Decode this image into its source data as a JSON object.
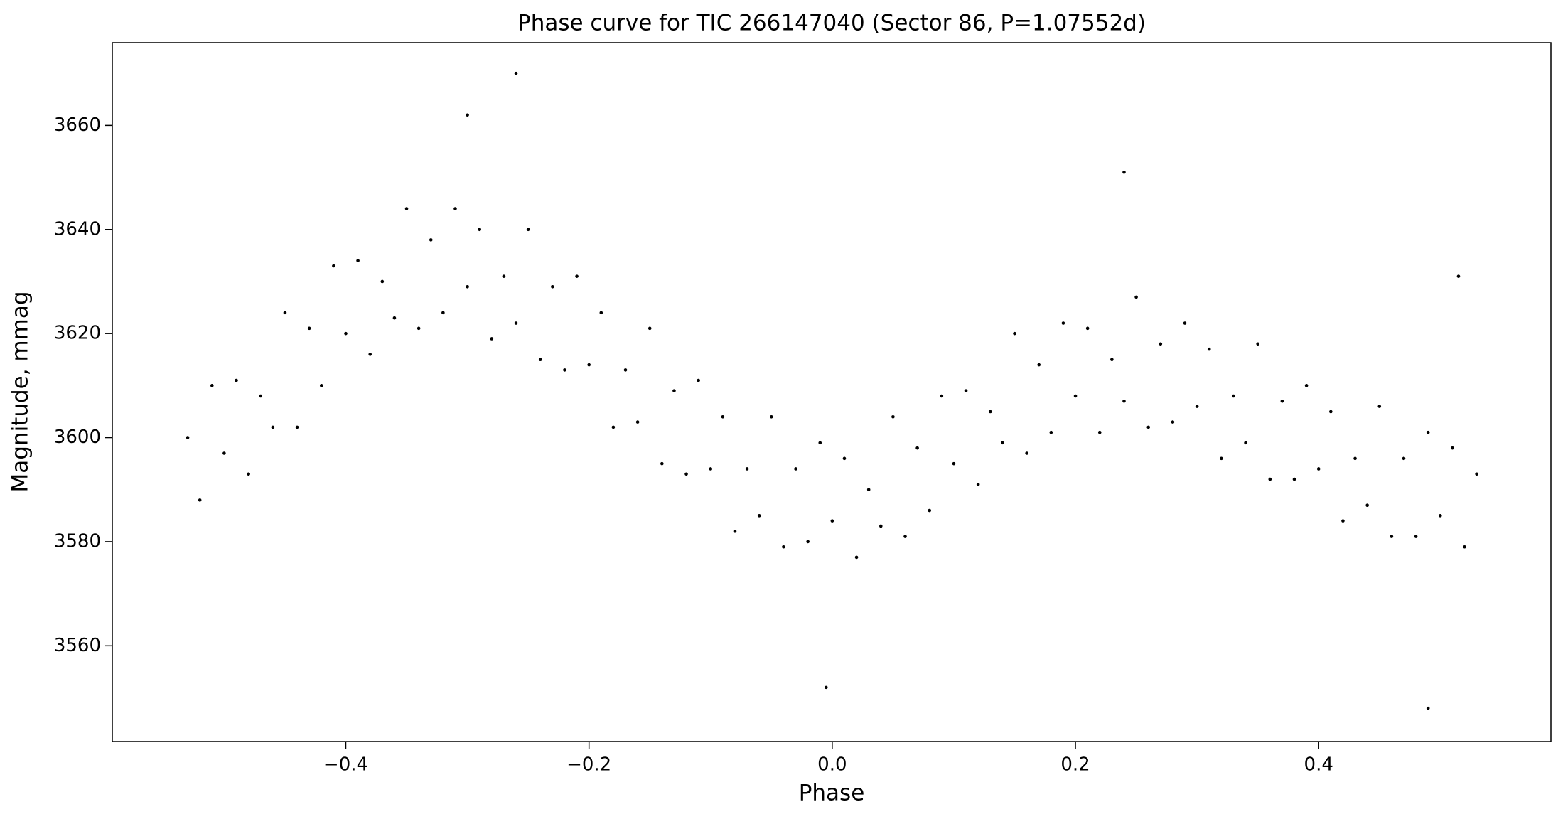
{
  "chart_data": {
    "type": "scatter",
    "title": "Phase curve for TIC 266147040 (Sector 86, P=1.07552d)",
    "x_label": "Phase",
    "y_label": "Magnitude, mmag",
    "color": "#000000",
    "xlim": [
      -0.592,
      0.591
    ],
    "ylim": [
      3541.6,
      3675.9
    ],
    "xticks": [
      {
        "value": -0.4,
        "label": "−0.4"
      },
      {
        "value": -0.2,
        "label": "−0.2"
      },
      {
        "value": 0,
        "label": "0.0"
      },
      0.2,
      0.4
    ],
    "yticks": [
      3560,
      3580,
      3600,
      3620,
      3640,
      3660
    ],
    "x": [
      -0.53,
      -0.52,
      -0.51,
      -0.5,
      -0.49,
      -0.48,
      -0.47,
      -0.46,
      -0.45,
      -0.44,
      -0.43,
      -0.42,
      -0.41,
      -0.4,
      -0.39,
      -0.38,
      -0.37,
      -0.36,
      -0.35,
      -0.34,
      -0.33,
      -0.32,
      -0.31,
      -0.3,
      -0.29,
      -0.28,
      -0.27,
      -0.26,
      -0.25,
      -0.24,
      -0.23,
      -0.22,
      -0.21,
      -0.2,
      -0.19,
      -0.18,
      -0.17,
      -0.16,
      -0.15,
      -0.14,
      -0.13,
      -0.12,
      -0.11,
      -0.1,
      -0.09,
      -0.08,
      -0.07,
      -0.06,
      -0.05,
      -0.04,
      -0.03,
      -0.02,
      -0.01,
      0,
      0.01,
      0.02,
      0.03,
      0.04,
      0.05,
      0.06,
      0.07,
      0.08,
      0.09,
      0.1,
      0.11,
      0.12,
      0.13,
      0.14,
      0.15,
      0.16,
      0.17,
      0.18,
      0.19,
      0.2,
      0.21,
      0.22,
      0.23,
      0.24,
      0.25,
      0.26,
      0.27,
      0.28,
      0.29,
      0.3,
      0.31,
      0.32,
      0.33,
      0.34,
      0.35,
      0.36,
      0.37,
      0.38,
      0.39,
      0.4,
      0.41,
      0.42,
      0.43,
      0.44,
      0.45,
      0.46,
      0.47,
      0.48,
      0.49,
      0.5,
      0.51,
      0.52,
      0.53,
      -0.26,
      0.49,
      0.24,
      -0.005,
      -0.3,
      0.515
    ],
    "values": [
      3600,
      3588,
      3610,
      3597,
      3611,
      3593,
      3608,
      3602,
      3624,
      3602,
      3621,
      3610,
      3633,
      3620,
      3634,
      3616,
      3630,
      3623,
      3644,
      3621,
      3638,
      3624,
      3644,
      3629,
      3640,
      3619,
      3631,
      3622,
      3640,
      3615,
      3629,
      3613,
      3631,
      3614,
      3624,
      3602,
      3613,
      3603,
      3621,
      3595,
      3609,
      3593,
      3611,
      3594,
      3604,
      3582,
      3594,
      3585,
      3604,
      3579,
      3594,
      3580,
      3599,
      3584,
      3596,
      3577,
      3590,
      3583,
      3604,
      3581,
      3598,
      3586,
      3608,
      3595,
      3609,
      3591,
      3605,
      3599,
      3620,
      3597,
      3614,
      3601,
      3622,
      3608,
      3621,
      3601,
      3615,
      3607,
      3627,
      3602,
      3618,
      3603,
      3622,
      3606,
      3617,
      3596,
      3608,
      3599,
      3618,
      3592,
      3607,
      3592,
      3610,
      3594,
      3605,
      3584,
      3596,
      3587,
      3606,
      3581,
      3596,
      3581,
      3601,
      3585,
      3598,
      3579,
      3593,
      3670,
      3548,
      3651,
      3552,
      3662,
      3631
    ]
  }
}
